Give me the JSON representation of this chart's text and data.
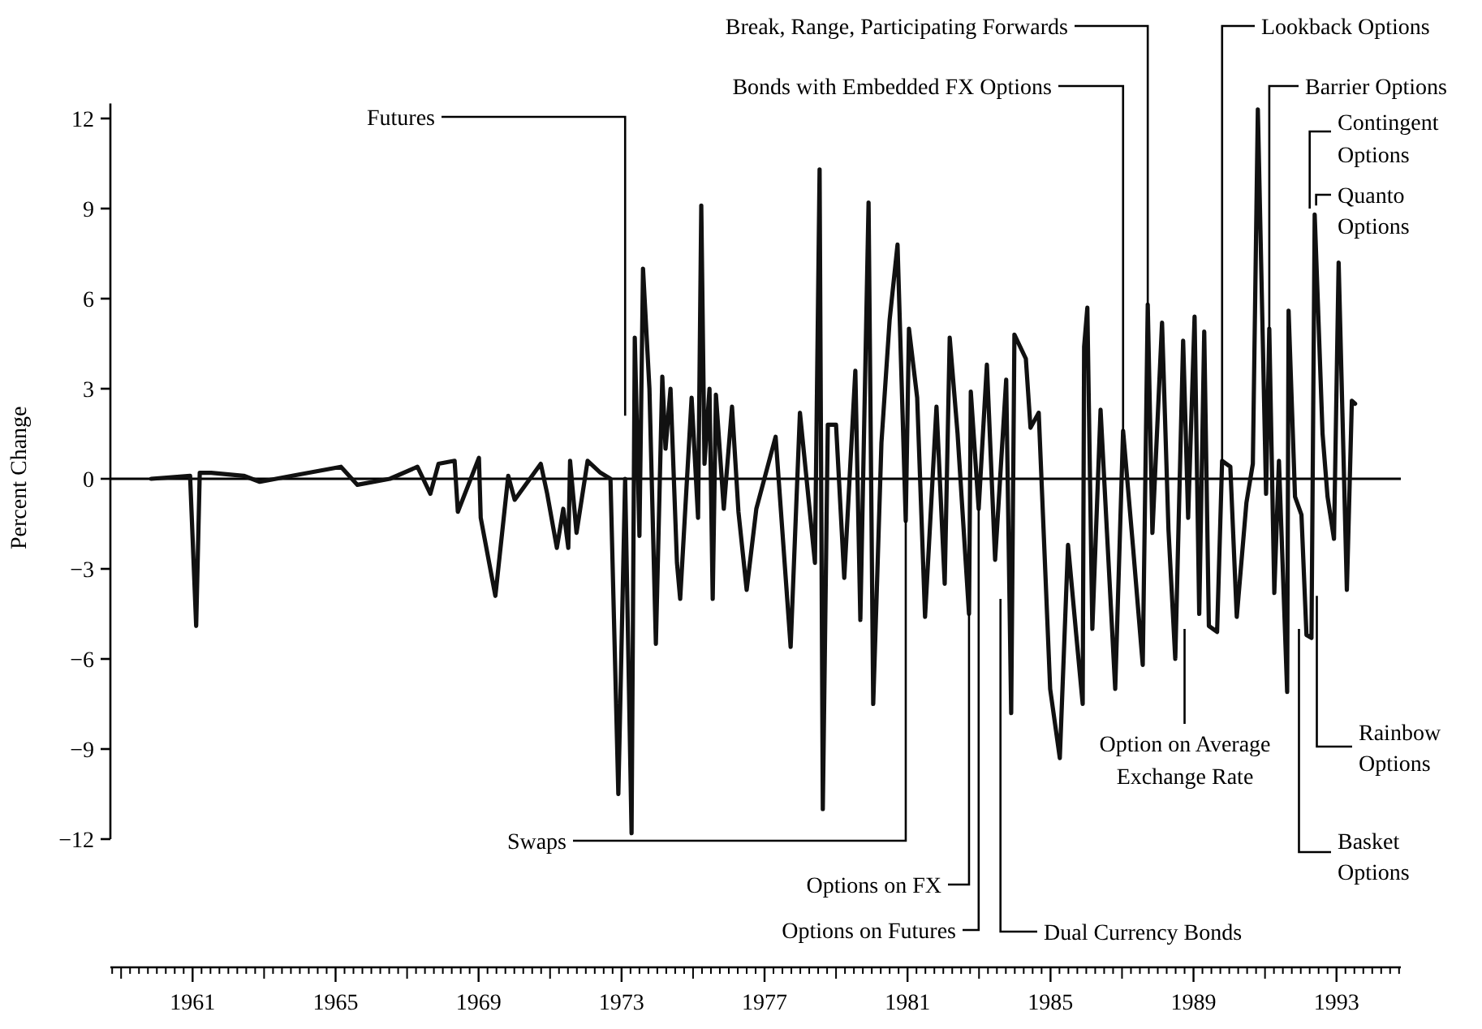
{
  "chart_data": {
    "type": "line",
    "ylabel": "Percent Change",
    "xlim": [
      1958.7,
      1994.8
    ],
    "xticks": [
      1961,
      1965,
      1969,
      1973,
      1977,
      1981,
      1985,
      1989,
      1993
    ],
    "ylim": [
      -12,
      12.5
    ],
    "yticks": [
      {
        "value": -12,
        "label": "−12"
      },
      {
        "value": -9,
        "label": "−9"
      },
      {
        "value": -6,
        "label": "−6"
      },
      {
        "value": -3,
        "label": "−3"
      },
      0,
      3,
      6,
      9,
      12
    ],
    "ref_lines": [
      {
        "axis": "y",
        "value": 0
      }
    ],
    "series": [
      {
        "color": "#111111",
        "x": [
          1959.84,
          1960.93,
          1961.1,
          1961.2,
          1961.52,
          1962.43,
          1962.88,
          1963.79,
          1965.15,
          1965.61,
          1966.52,
          1967.29,
          1967.65,
          1967.88,
          1968.33,
          1968.42,
          1969.01,
          1969.06,
          1969.47,
          1969.83,
          1970.01,
          1970.74,
          1970.92,
          1971.19,
          1971.37,
          1971.51,
          1971.56,
          1971.74,
          1972.05,
          1972.41,
          1972.69,
          1972.91,
          1973.1,
          1973.28,
          1973.37,
          1973.5,
          1973.6,
          1973.78,
          1973.96,
          1974.14,
          1974.23,
          1974.37,
          1974.55,
          1974.64,
          1974.96,
          1975.14,
          1975.23,
          1975.32,
          1975.46,
          1975.55,
          1975.64,
          1975.86,
          1976.09,
          1976.27,
          1976.5,
          1976.77,
          1977.31,
          1977.73,
          1977.99,
          1978.41,
          1978.54,
          1978.63,
          1978.77,
          1979.0,
          1979.23,
          1979.54,
          1979.68,
          1979.91,
          1980.04,
          1980.27,
          1980.5,
          1980.72,
          1980.95,
          1981.04,
          1981.27,
          1981.49,
          1981.81,
          1982.04,
          1982.18,
          1982.4,
          1982.72,
          1982.77,
          1982.99,
          1983.22,
          1983.45,
          1983.76,
          1983.9,
          1983.99,
          1984.31,
          1984.44,
          1984.67,
          1984.99,
          1985.26,
          1985.49,
          1985.72,
          1985.9,
          1985.94,
          1986.03,
          1986.17,
          1986.4,
          1986.58,
          1986.81,
          1987.03,
          1987.31,
          1987.58,
          1987.72,
          1987.85,
          1988.12,
          1988.3,
          1988.49,
          1988.71,
          1988.85,
          1989.03,
          1989.16,
          1989.3,
          1989.43,
          1989.66,
          1989.8,
          1990.03,
          1990.21,
          1990.48,
          1990.66,
          1990.8,
          1991.03,
          1991.12,
          1991.26,
          1991.39,
          1991.62,
          1991.66,
          1991.84,
          1992.02,
          1992.16,
          1992.3,
          1992.39,
          1992.61,
          1992.75,
          1992.93,
          1993.06,
          1993.29,
          1993.43,
          1993.52
        ],
        "values": [
          0,
          0.1,
          -4.9,
          0.2,
          0.2,
          0.1,
          -0.1,
          0.1,
          0.4,
          -0.2,
          0,
          0.4,
          -0.5,
          0.5,
          0.6,
          -1.1,
          0.7,
          -1.3,
          -3.9,
          0.1,
          -0.7,
          0.5,
          -0.5,
          -2.3,
          -1.0,
          -2.3,
          0.6,
          -1.8,
          0.6,
          0.2,
          0,
          -10.5,
          0,
          -11.8,
          4.7,
          -1.9,
          7.0,
          3.0,
          -5.5,
          3.4,
          1.0,
          3.0,
          -2.8,
          -4.0,
          2.7,
          -1.3,
          9.1,
          0.5,
          3.0,
          -4.0,
          2.8,
          -1.0,
          2.4,
          -1.1,
          -3.7,
          -1.0,
          1.4,
          -5.6,
          2.2,
          -2.8,
          10.3,
          -11.0,
          1.8,
          1.8,
          -3.3,
          3.6,
          -4.7,
          9.2,
          -7.5,
          1.2,
          5.3,
          7.8,
          -1.4,
          5.0,
          2.7,
          -4.6,
          2.4,
          -3.5,
          4.7,
          1.5,
          -4.5,
          2.9,
          -1.0,
          3.8,
          -2.7,
          3.3,
          -7.8,
          4.8,
          4.0,
          1.7,
          2.2,
          -7.0,
          -9.3,
          -2.2,
          -5.2,
          -7.5,
          4.4,
          5.7,
          -5.0,
          2.3,
          -1.8,
          -7.0,
          1.6,
          -2.3,
          -6.2,
          5.8,
          -1.8,
          5.2,
          -1.7,
          -6.0,
          4.6,
          -1.3,
          5.4,
          -4.5,
          4.9,
          -4.9,
          -5.1,
          0.6,
          0.4,
          -4.6,
          -0.8,
          0.5,
          12.3,
          -0.5,
          5.0,
          -3.8,
          0.6,
          -7.1,
          5.6,
          -0.6,
          -1.2,
          -5.2,
          -5.3,
          8.8,
          1.5,
          -0.6,
          -2.0,
          7.2,
          -3.7,
          2.6,
          2.5
        ]
      }
    ],
    "annotations": [
      {
        "text": "Futures",
        "x": 1973.1,
        "y": 2.1
      },
      {
        "text": "Break, Range, Participating Forwards",
        "x": 1987.72,
        "y": 5.8
      },
      {
        "text": "Bonds with Embedded FX Options",
        "x": 1987.03,
        "y": 1.6
      },
      {
        "text": "Lookback Options",
        "x": 1989.8,
        "y": 0.6
      },
      {
        "text": "Barrier Options",
        "x": 1991.12,
        "y": 5.0
      },
      {
        "text": "Contingent Options",
        "x": 1992.25,
        "y": 9.0
      },
      {
        "text": "Quanto Options",
        "x": 1992.43,
        "y": 9.1
      },
      {
        "text": "Swaps",
        "x": 1980.95,
        "y": -1.4
      },
      {
        "text": "Options on FX",
        "x": 1982.72,
        "y": -4.5
      },
      {
        "text": "Options on Futures",
        "x": 1982.99,
        "y": -1.0
      },
      {
        "text": "Dual Currency Bonds",
        "x": 1983.6,
        "y": -4.0
      },
      {
        "text": "Option on Average Exchange Rate",
        "x": 1988.75,
        "y": -5.0
      },
      {
        "text": "Rainbow Options",
        "x": 1992.45,
        "y": -3.9
      },
      {
        "text": "Basket Options",
        "x": 1991.95,
        "y": -5.0
      }
    ]
  }
}
